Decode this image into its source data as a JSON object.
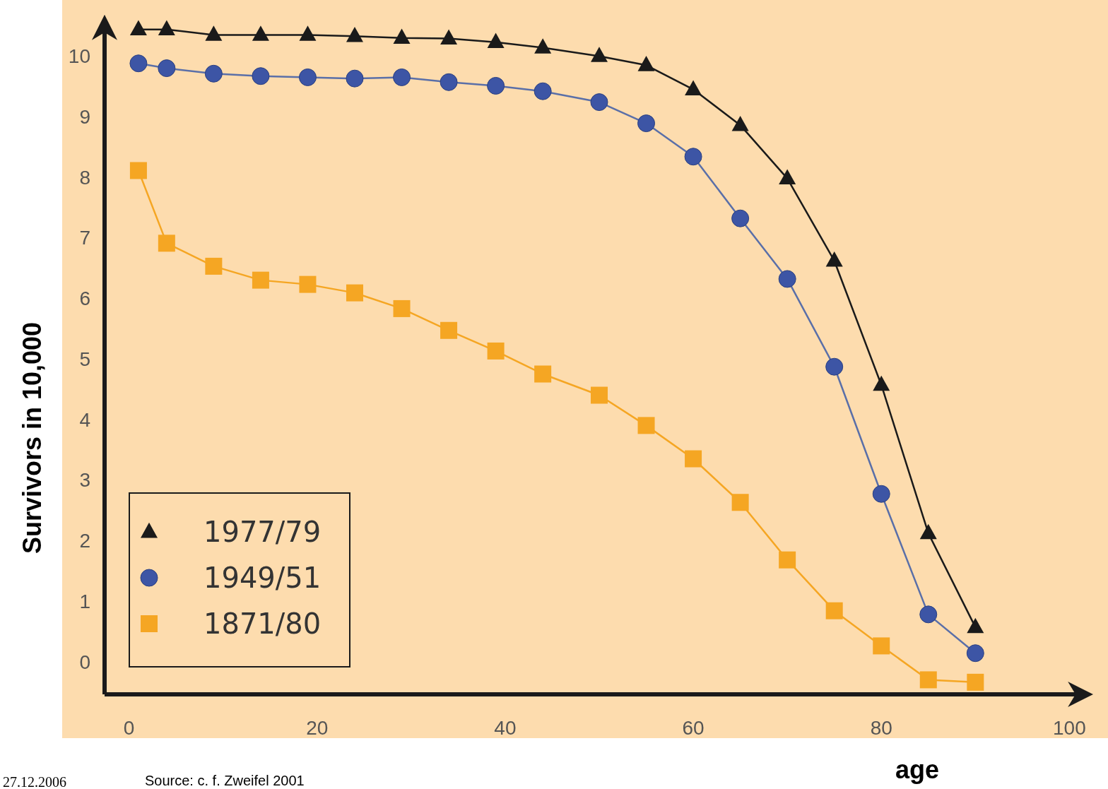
{
  "chart_data": {
    "type": "line",
    "xlabel": "age",
    "ylabel": "Survivors in 10,000",
    "xlim": [
      -2.6,
      102
    ],
    "ylim": [
      -0.54,
      10.6
    ],
    "xticks": [
      0,
      20,
      40,
      60,
      80,
      100
    ],
    "yticks": [
      0,
      1,
      2,
      3,
      4,
      5,
      6,
      7,
      8,
      9,
      10
    ],
    "grid": false,
    "legend": "bottom left",
    "annotations": [
      "Source: c. f. Zweifel 2001",
      "27.12.2006"
    ],
    "series": [
      {
        "name": "1977/79",
        "color": "#1a1a1a",
        "marker": "triangle",
        "x": [
          1,
          4,
          9,
          14,
          19,
          24,
          29,
          34,
          39,
          44,
          50,
          55,
          60,
          65,
          70,
          75,
          80,
          85,
          90
        ],
        "values": [
          10.44,
          10.44,
          10.35,
          10.35,
          10.35,
          10.33,
          10.3,
          10.29,
          10.23,
          10.14,
          10.0,
          9.85,
          9.45,
          8.86,
          7.98,
          6.62,
          4.57,
          2.12,
          0.57
        ]
      },
      {
        "name": "1949/51",
        "color": "#3d55a5",
        "marker": "circle",
        "x": [
          1,
          4,
          9,
          14,
          19,
          24,
          29,
          34,
          39,
          44,
          50,
          55,
          60,
          65,
          70,
          75,
          80,
          85,
          90
        ],
        "values": [
          9.88,
          9.8,
          9.71,
          9.67,
          9.65,
          9.63,
          9.65,
          9.57,
          9.51,
          9.42,
          9.24,
          8.89,
          8.34,
          7.32,
          6.32,
          4.87,
          2.77,
          0.78,
          0.14
        ]
      },
      {
        "name": "1871/80",
        "color": "#f5a623",
        "marker": "square",
        "x": [
          1,
          4,
          9,
          14,
          19,
          24,
          29,
          34,
          39,
          44,
          50,
          55,
          60,
          65,
          70,
          75,
          80,
          85,
          90
        ],
        "values": [
          8.11,
          6.91,
          6.53,
          6.3,
          6.23,
          6.09,
          5.83,
          5.47,
          5.13,
          4.75,
          4.4,
          3.9,
          3.35,
          2.63,
          1.68,
          0.84,
          0.26,
          -0.3,
          -0.34
        ]
      }
    ]
  }
}
